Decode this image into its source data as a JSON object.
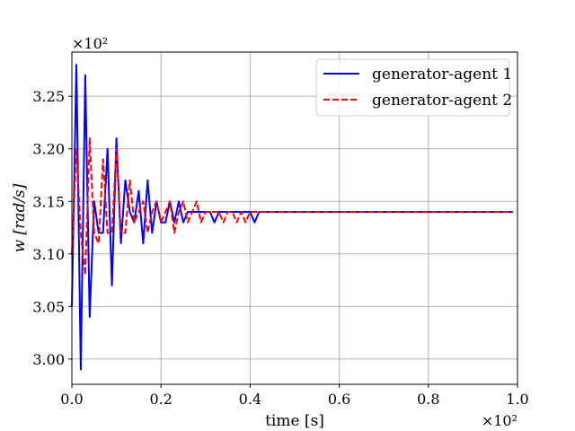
{
  "chart_data": {
    "type": "line",
    "title": "",
    "xlabel": "time [s]",
    "ylabel": "w [rad/s]",
    "x_multiplier_label": "×10²",
    "y_multiplier_label": "×10²",
    "xlim": [
      0.0,
      1.0
    ],
    "ylim": [
      2.976,
      3.292
    ],
    "x_ticks": [
      0.0,
      0.2,
      0.4,
      0.6,
      0.8,
      1.0
    ],
    "x_tick_labels": [
      "0.0",
      "0.2",
      "0.4",
      "0.6",
      "0.8",
      "1.0"
    ],
    "y_ticks": [
      3.0,
      3.05,
      3.1,
      3.15,
      3.2,
      3.25
    ],
    "y_tick_labels": [
      "3.00",
      "3.05",
      "3.10",
      "3.15",
      "3.20",
      "3.25"
    ],
    "grid": true,
    "legend_position": "top-right",
    "series": [
      {
        "name": "generator-agent 1",
        "color": "#0000ff",
        "style": "solid",
        "x": [
          0.0,
          0.01,
          0.02,
          0.03,
          0.04,
          0.05,
          0.06,
          0.07,
          0.08,
          0.09,
          0.1,
          0.11,
          0.12,
          0.13,
          0.14,
          0.15,
          0.16,
          0.17,
          0.18,
          0.19,
          0.2,
          0.21,
          0.22,
          0.23,
          0.24,
          0.25,
          0.26,
          0.27,
          0.28,
          0.29,
          0.3,
          0.31,
          0.32,
          0.33,
          0.34,
          0.35,
          0.36,
          0.37,
          0.38,
          0.39,
          0.4,
          0.41,
          0.42,
          0.99
        ],
        "y": [
          3.05,
          3.28,
          2.99,
          3.27,
          3.04,
          3.15,
          3.12,
          3.12,
          3.2,
          3.07,
          3.21,
          3.11,
          3.17,
          3.14,
          3.13,
          3.16,
          3.11,
          3.17,
          3.12,
          3.15,
          3.13,
          3.13,
          3.15,
          3.13,
          3.15,
          3.13,
          3.14,
          3.14,
          3.14,
          3.14,
          3.14,
          3.14,
          3.13,
          3.14,
          3.14,
          3.14,
          3.14,
          3.14,
          3.14,
          3.14,
          3.14,
          3.13,
          3.14,
          3.14
        ]
      },
      {
        "name": "generator-agent 2",
        "color": "#ff0000",
        "style": "dashed",
        "x": [
          0.0,
          0.01,
          0.02,
          0.03,
          0.04,
          0.05,
          0.06,
          0.07,
          0.08,
          0.09,
          0.1,
          0.11,
          0.12,
          0.13,
          0.14,
          0.15,
          0.16,
          0.17,
          0.18,
          0.19,
          0.2,
          0.21,
          0.22,
          0.23,
          0.24,
          0.25,
          0.26,
          0.27,
          0.28,
          0.29,
          0.3,
          0.31,
          0.32,
          0.33,
          0.34,
          0.35,
          0.36,
          0.37,
          0.38,
          0.39,
          0.4,
          0.41,
          0.42,
          0.99
        ],
        "y": [
          3.1,
          3.2,
          3.12,
          3.08,
          3.21,
          3.12,
          3.11,
          3.19,
          3.12,
          3.12,
          3.2,
          3.12,
          3.12,
          3.17,
          3.13,
          3.14,
          3.15,
          3.12,
          3.14,
          3.15,
          3.13,
          3.14,
          3.15,
          3.12,
          3.14,
          3.15,
          3.13,
          3.14,
          3.15,
          3.13,
          3.14,
          3.14,
          3.14,
          3.14,
          3.13,
          3.14,
          3.14,
          3.13,
          3.14,
          3.13,
          3.14,
          3.14,
          3.14,
          3.14
        ]
      }
    ]
  }
}
